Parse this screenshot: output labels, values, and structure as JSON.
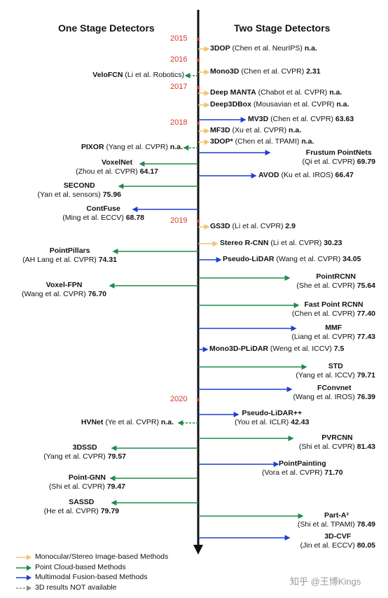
{
  "headers": {
    "left": "One Stage Detectors",
    "right": "Two Stage Detectors"
  },
  "years": [
    "2015",
    "2016",
    "2017",
    "2018",
    "2019",
    "2020"
  ],
  "colors": {
    "mono": "#f2c46d",
    "pc": "#1f8a4c",
    "fusion": "#1f3fcf",
    "na": "#888888",
    "year": "#d23a2a"
  },
  "methods": [
    {
      "name": "3DOP",
      "cite": "(Chen et al. NeurIPS)",
      "score": "n.a.",
      "side": "right",
      "cat": "mono"
    },
    {
      "name": "Mono3D",
      "cite": "(Chen et al. CVPR)",
      "score": "2.31",
      "side": "right",
      "cat": "mono"
    },
    {
      "name": "VeloFCN",
      "cite": "(Li et al. Robotics)",
      "score": "",
      "side": "left",
      "cat": "pc",
      "dashed": true
    },
    {
      "name": "Deep MANTA",
      "cite": "(Chabot et al. CVPR)",
      "score": "n.a.",
      "side": "right",
      "cat": "mono"
    },
    {
      "name": "Deep3DBox",
      "cite": "(Mousavian et al. CVPR)",
      "score": "n.a.",
      "side": "right",
      "cat": "mono"
    },
    {
      "name": "MV3D",
      "cite": "(Chen et al. CVPR)",
      "score": "63.63",
      "side": "right",
      "cat": "fusion"
    },
    {
      "name": "MF3D",
      "cite": "(Xu et al. CVPR)",
      "score": "n.a.",
      "side": "right",
      "cat": "mono"
    },
    {
      "name": "3DOP*",
      "cite": "(Chen et al. TPAMI)",
      "score": "n.a.",
      "side": "right",
      "cat": "mono"
    },
    {
      "name": "PIXOR",
      "cite": "(Yang et al. CVPR)",
      "score": "n.a.",
      "side": "left",
      "cat": "pc",
      "dashed": true
    },
    {
      "name": "Frustum PointNets",
      "cite": "(Qi et al. CVPR)",
      "score": "69.79",
      "side": "right",
      "cat": "fusion",
      "twoLine": true
    },
    {
      "name": "VoxelNet",
      "cite": "(Zhou et al. CVPR)",
      "score": "64.17",
      "side": "left",
      "cat": "pc",
      "twoLine": true
    },
    {
      "name": "AVOD",
      "cite": "(Ku et al. IROS)",
      "score": "66.47",
      "side": "right",
      "cat": "fusion"
    },
    {
      "name": "SECOND",
      "cite": "(Yan et al. sensors)",
      "score": "75.96",
      "side": "left",
      "cat": "pc",
      "twoLine": true
    },
    {
      "name": "ContFuse",
      "cite": "(Ming et al. ECCV)",
      "score": "68.78",
      "side": "left",
      "cat": "fusion",
      "twoLine": true
    },
    {
      "name": "GS3D",
      "cite": "(Li et al. CVPR)",
      "score": "2.9",
      "side": "right",
      "cat": "mono"
    },
    {
      "name": "Stereo R-CNN",
      "cite": "(Li et al. CVPR)",
      "score": "30.23",
      "side": "right",
      "cat": "mono"
    },
    {
      "name": "PointPillars",
      "cite": "(AH Lang et al. CVPR)",
      "score": "74.31",
      "side": "left",
      "cat": "pc",
      "twoLine": true
    },
    {
      "name": "Pseudo-LiDAR",
      "cite": "(Wang et al. CVPR)",
      "score": "34.05",
      "side": "right",
      "cat": "fusion"
    },
    {
      "name": "Voxel-FPN",
      "cite": "(Wang et al. CVPR)",
      "score": "76.70",
      "side": "left",
      "cat": "pc",
      "twoLine": true
    },
    {
      "name": "PointRCNN",
      "cite": "(She et al. CVPR)",
      "score": "75.64",
      "side": "right",
      "cat": "pc",
      "twoLine": true
    },
    {
      "name": "Fast Point RCNN",
      "cite": "(Chen et al. CVPR)",
      "score": "77.40",
      "side": "right",
      "cat": "pc",
      "twoLine": true
    },
    {
      "name": "MMF",
      "cite": "(Liang et al. CVPR)",
      "score": "77.43",
      "side": "right",
      "cat": "fusion",
      "twoLine": true
    },
    {
      "name": "Mono3D-PLiDAR",
      "cite": "(Weng et al. ICCV)",
      "score": "7.5",
      "side": "right",
      "cat": "fusion"
    },
    {
      "name": "STD",
      "cite": "(Yang et al. ICCV)",
      "score": "79.71",
      "side": "right",
      "cat": "pc",
      "twoLine": true
    },
    {
      "name": "FConvnet",
      "cite": "(Wang et al. IROS)",
      "score": "76.39",
      "side": "right",
      "cat": "fusion",
      "twoLine": true
    },
    {
      "name": "Pseudo-LiDAR++",
      "cite": "(You et al. ICLR)",
      "score": "42.43",
      "side": "right",
      "cat": "fusion",
      "twoLine": true
    },
    {
      "name": "HVNet",
      "cite": "(Ye et al. CVPR)",
      "score": "n.a.",
      "side": "left",
      "cat": "pc",
      "dashed": true
    },
    {
      "name": "PVRCNN",
      "cite": "(Shi et al. CVPR)",
      "score": "81.43",
      "side": "right",
      "cat": "pc",
      "twoLine": true
    },
    {
      "name": "3DSSD",
      "cite": "(Yang et al. CVPR)",
      "score": "79.57",
      "side": "left",
      "cat": "pc",
      "twoLine": true
    },
    {
      "name": "PointPainting",
      "cite": "(Vora et al. CVPR)",
      "score": "71.70",
      "side": "right",
      "cat": "fusion",
      "twoLine": true
    },
    {
      "name": "Point-GNN",
      "cite": "(Shi et al. CVPR)",
      "score": "79.47",
      "side": "left",
      "cat": "pc",
      "twoLine": true
    },
    {
      "name": "SASSD",
      "cite": "(He et al. CVPR)",
      "score": "79.79",
      "side": "left",
      "cat": "pc",
      "twoLine": true
    },
    {
      "name": "Part-A²",
      "cite": "(Shi et al. TPAMI)",
      "score": "78.49",
      "side": "right",
      "cat": "pc",
      "twoLine": true
    },
    {
      "name": "3D-CVF",
      "cite": "(Jin et al. ECCV)",
      "score": "80.05",
      "side": "right",
      "cat": "fusion",
      "twoLine": true
    }
  ],
  "legend": [
    {
      "cat": "mono",
      "label": "Monocular/Stereo Image-based Methods"
    },
    {
      "cat": "pc",
      "label": "Point Cloud-based Methods"
    },
    {
      "cat": "fusion",
      "label": "Multimodal Fusion-based Methods"
    },
    {
      "cat": "na",
      "label": "3D results NOT available"
    }
  ],
  "watermark": "知乎 @王博Kings"
}
